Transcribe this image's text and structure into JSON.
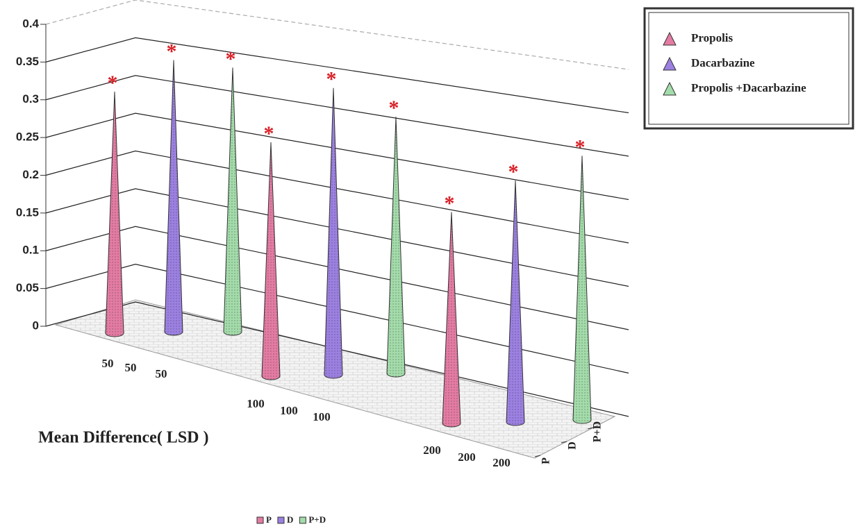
{
  "chart_data": {
    "type": "cone3d",
    "axis_title": "Mean Difference( LSD )",
    "categories": [
      "50",
      "100",
      "200"
    ],
    "series": [
      {
        "name": "P",
        "legend_label": "Propolis",
        "color": "#e47ba3",
        "values": [
          0.32,
          0.31,
          0.28
        ]
      },
      {
        "name": "D",
        "legend_label": "Dacarbazine",
        "color": "#9c80e2",
        "values": [
          0.36,
          0.38,
          0.32
        ]
      },
      {
        "name": "P+D",
        "legend_label": "Propolis +Dacarbazine",
        "color": "#a3dcaa",
        "values": [
          0.35,
          0.34,
          0.35
        ]
      }
    ],
    "significance_marker": "*",
    "ylim": [
      0,
      0.4
    ],
    "yticks": [
      0,
      0.05,
      0.1,
      0.15,
      0.2,
      0.25,
      0.3,
      0.35,
      0.4
    ],
    "grid": true
  }
}
